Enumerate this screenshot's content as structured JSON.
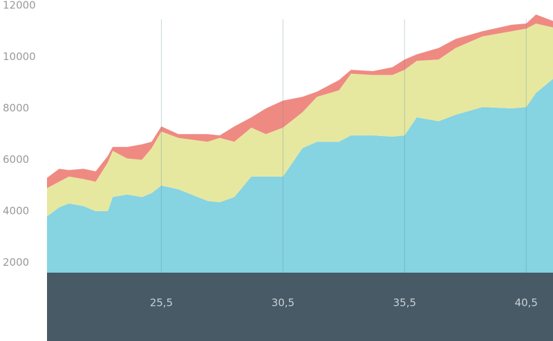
{
  "chart_data": {
    "type": "stacked_area",
    "x": [
      20.8,
      21.3,
      21.7,
      22.3,
      22.8,
      23.3,
      23.5,
      24.1,
      24.7,
      25.1,
      25.5,
      26.2,
      27.4,
      27.9,
      28.5,
      29.2,
      29.8,
      30.5,
      31.3,
      31.9,
      32.8,
      33.3,
      34.2,
      35.0,
      35.5,
      36.0,
      36.9,
      37.6,
      38.7,
      39.9,
      40.5,
      40.9,
      41.6
    ],
    "series": [
      {
        "color": "#86d3e2",
        "values": [
          3800,
          4150,
          4300,
          4200,
          4000,
          4000,
          4550,
          4650,
          4550,
          4700,
          5000,
          4850,
          4400,
          4350,
          4550,
          5350,
          5350,
          5350,
          6450,
          6700,
          6700,
          6950,
          6950,
          6900,
          6950,
          7650,
          7500,
          7750,
          8050,
          8000,
          8050,
          8600,
          9150
        ]
      },
      {
        "color": "#e6e8a0",
        "values": [
          1100,
          1000,
          1050,
          1050,
          1150,
          1900,
          1800,
          1400,
          1450,
          1750,
          2100,
          2000,
          2300,
          2500,
          2150,
          1900,
          1650,
          1900,
          1400,
          1750,
          2000,
          2400,
          2350,
          2400,
          2550,
          2200,
          2400,
          2600,
          2750,
          3000,
          3050,
          2700,
          2000
        ]
      },
      {
        "color": "#ef8a82",
        "values": [
          400,
          500,
          250,
          400,
          400,
          250,
          150,
          450,
          600,
          250,
          200,
          150,
          300,
          100,
          600,
          400,
          1000,
          1050,
          600,
          200,
          400,
          150,
          150,
          300,
          400,
          250,
          450,
          350,
          200,
          250,
          200,
          350,
          250
        ]
      }
    ],
    "xlim": [
      20.8,
      41.6
    ],
    "ylim": [
      0,
      12000
    ],
    "xticks": [
      {
        "value": 25.5,
        "label": "25,5"
      },
      {
        "value": 30.5,
        "label": "30,5"
      },
      {
        "value": 35.5,
        "label": "35,5"
      },
      {
        "value": 40.5,
        "label": "40,5"
      }
    ],
    "yticks": [
      2000,
      4000,
      6000,
      8000,
      10000,
      12000
    ],
    "xgrid": true,
    "axis_band_color": "#475a66"
  }
}
